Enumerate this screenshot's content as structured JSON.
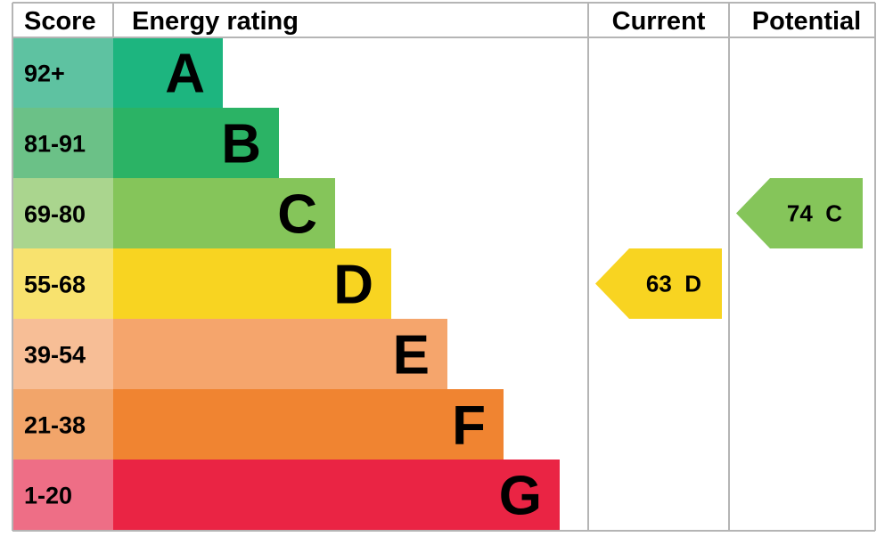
{
  "chart_data": {
    "type": "bar",
    "headers": {
      "score": "Score",
      "rating": "Energy rating",
      "current": "Current",
      "potential": "Potential"
    },
    "bands": [
      {
        "letter": "A",
        "range": "92+",
        "min": 92,
        "color": "#1db57f",
        "score_bg": "#5ec2a1"
      },
      {
        "letter": "B",
        "range": "81-91",
        "min": 81,
        "color": "#2bb365",
        "score_bg": "#6bc187"
      },
      {
        "letter": "C",
        "range": "69-80",
        "min": 69,
        "color": "#85c55a",
        "score_bg": "#aad58e"
      },
      {
        "letter": "D",
        "range": "55-68",
        "min": 55,
        "color": "#f8d421",
        "score_bg": "#f8e26e"
      },
      {
        "letter": "E",
        "range": "39-54",
        "min": 39,
        "color": "#f5a56c",
        "score_bg": "#f7be96"
      },
      {
        "letter": "F",
        "range": "21-38",
        "min": 21,
        "color": "#f08431",
        "score_bg": "#f2a56a"
      },
      {
        "letter": "G",
        "range": "1-20",
        "min": 1,
        "color": "#ea2444",
        "score_bg": "#ee6e86"
      }
    ],
    "current": {
      "value": 63,
      "band": "D",
      "label": "63  D",
      "color": "#f8d421"
    },
    "potential": {
      "value": 74,
      "band": "C",
      "label": "74  C",
      "color": "#85c55a"
    }
  }
}
